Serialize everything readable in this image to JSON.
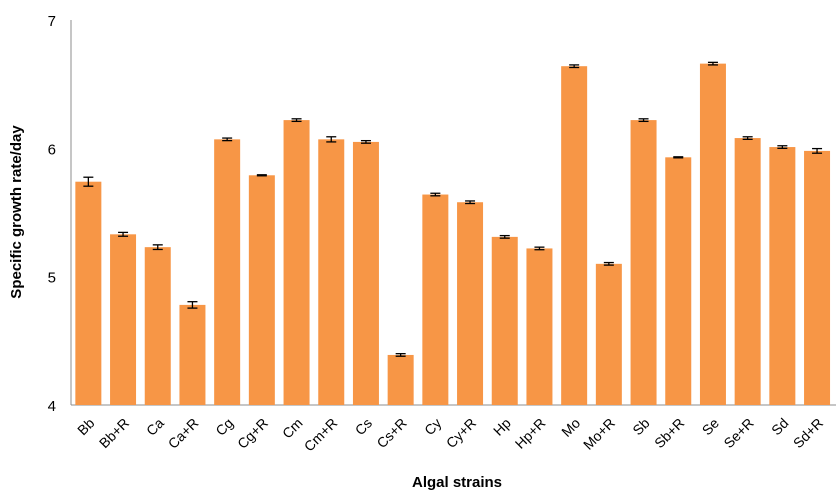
{
  "chart_data": {
    "type": "bar",
    "title": "",
    "xlabel": "Algal strains",
    "ylabel": "Specific growth rate/day",
    "ylim": [
      4,
      7
    ],
    "yticks": [
      "4",
      "5",
      "6",
      "7"
    ],
    "grid": false,
    "legend": "none",
    "bar_color": "#F79646",
    "error_bar_color": "#000000",
    "categories": [
      "Bb",
      "Bb+R",
      "Ca",
      "Ca+R",
      "Cg",
      "Cg+R",
      "Cm",
      "Cm+R",
      "Cs",
      "Cs+R",
      "Cy",
      "Cy+R",
      "Hp",
      "Hp+R",
      "Mo",
      "Mo+R",
      "Sb",
      "Sb+R",
      "Se",
      "Se+R",
      "Sd",
      "Sd+R"
    ],
    "values": [
      5.74,
      5.33,
      5.23,
      4.78,
      6.07,
      5.79,
      6.22,
      6.07,
      6.05,
      4.39,
      5.64,
      5.58,
      5.31,
      5.22,
      6.64,
      5.1,
      6.22,
      5.93,
      6.66,
      6.08,
      6.01,
      5.98
    ],
    "errors": [
      0.035,
      0.015,
      0.018,
      0.025,
      0.01,
      0.004,
      0.01,
      0.02,
      0.01,
      0.01,
      0.01,
      0.01,
      0.01,
      0.01,
      0.01,
      0.01,
      0.01,
      0.004,
      0.01,
      0.01,
      0.01,
      0.018
    ]
  }
}
